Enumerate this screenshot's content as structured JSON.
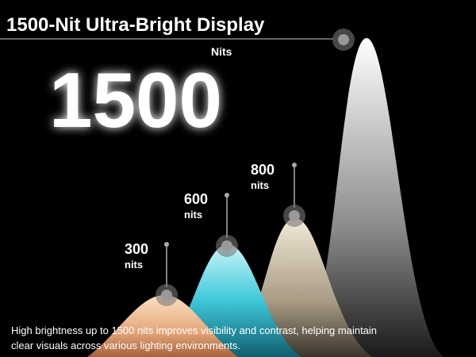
{
  "title": "1500-Nit Ultra-Bright Display",
  "headline": {
    "value": 1500,
    "unit": "Nits"
  },
  "levels": [
    {
      "value": 300,
      "unit": "nits"
    },
    {
      "value": 600,
      "unit": "nits"
    },
    {
      "value": 800,
      "unit": "nits"
    }
  ],
  "caption": [
    "High brightness up to 1500 nits improves visibility and contrast, helping maintain",
    "clear visuals across various lighting environments."
  ]
}
